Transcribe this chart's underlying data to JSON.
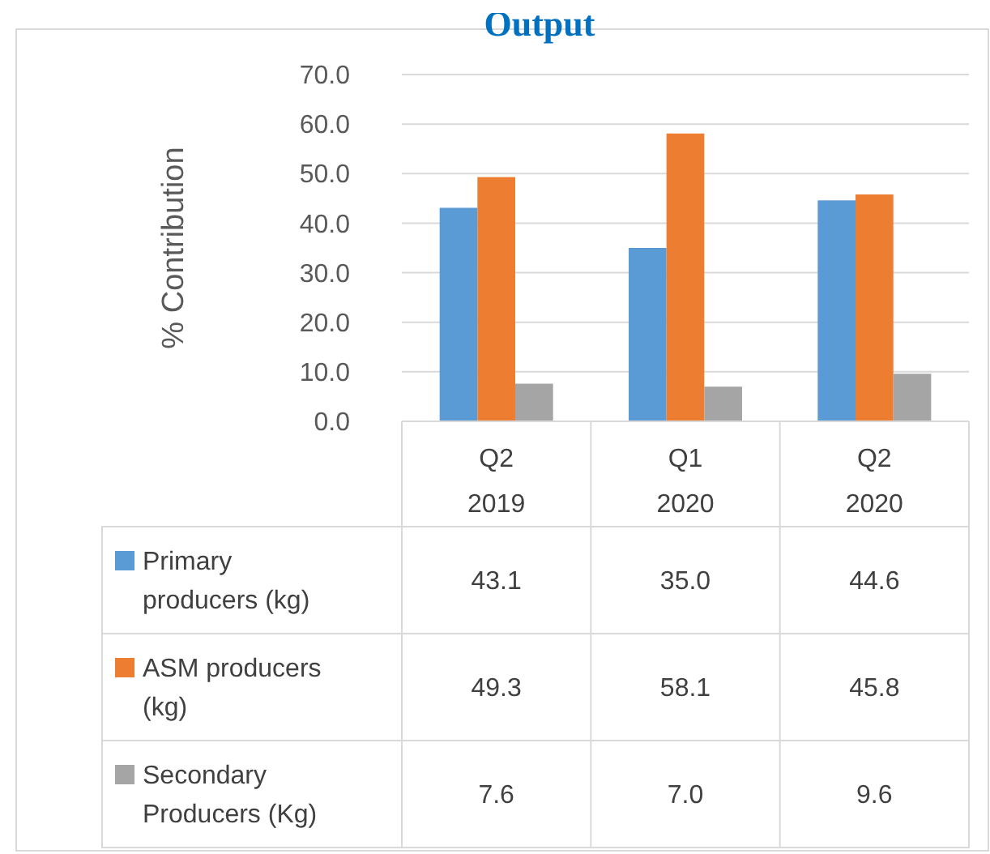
{
  "chart_data": {
    "type": "bar",
    "title": "Output",
    "ylabel": "% Contribution",
    "categories": [
      "Q2 2019",
      "Q1 2020",
      "Q2 2020"
    ],
    "series": [
      {
        "name": "Primary producers (kg)",
        "color": "#5b9bd5",
        "values": [
          43.1,
          35.0,
          44.6
        ],
        "value_labels": [
          "43.1",
          "35.0",
          "44.6"
        ]
      },
      {
        "name": "ASM producers (kg)",
        "color": "#ed7d31",
        "values": [
          49.3,
          58.1,
          45.8
        ],
        "value_labels": [
          "49.3",
          "58.1",
          "45.8"
        ]
      },
      {
        "name": "Secondary Producers (Kg)",
        "color": "#a5a5a5",
        "values": [
          7.6,
          7.0,
          9.6
        ],
        "value_labels": [
          "7.6",
          "7.0",
          "9.6"
        ]
      }
    ],
    "ylim": [
      0,
      70
    ],
    "yticks": [
      {
        "value": 0,
        "label": "0.0"
      },
      {
        "value": 10,
        "label": "10.0"
      },
      {
        "value": 20,
        "label": "20.0"
      },
      {
        "value": 30,
        "label": "30.0"
      },
      {
        "value": 40,
        "label": "40.0"
      },
      {
        "value": 50,
        "label": "50.0"
      },
      {
        "value": 60,
        "label": "60.0"
      },
      {
        "value": 70,
        "label": "70.0"
      }
    ],
    "grid": "y",
    "legend": "bottom"
  }
}
